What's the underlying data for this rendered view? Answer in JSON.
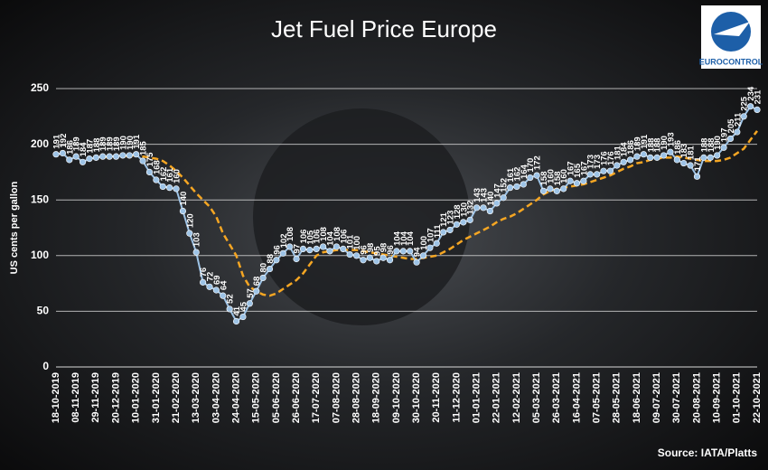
{
  "chart_data": {
    "type": "line",
    "title": "Jet Fuel Price Europe",
    "y_label": "US cents per gallon",
    "source": "Source: IATA/Platts",
    "logo": "EUROCONTROL",
    "categories": [
      "18-10-2019",
      null,
      null,
      "08-11-2019",
      null,
      null,
      "29-11-2019",
      null,
      null,
      "20-12-2019",
      null,
      null,
      "10-01-2020",
      null,
      null,
      "31-01-2020",
      null,
      null,
      "21-02-2020",
      null,
      null,
      "13-03-2020",
      null,
      null,
      "03-04-2020",
      null,
      null,
      "24-04-2020",
      null,
      null,
      "15-05-2020",
      null,
      null,
      "05-06-2020",
      null,
      null,
      "26-06-2020",
      null,
      null,
      "17-07-2020",
      null,
      null,
      "07-08-2020",
      null,
      null,
      "28-08-2020",
      null,
      null,
      "18-09-2020",
      null,
      null,
      "09-10-2020",
      null,
      null,
      "30-10-2020",
      null,
      null,
      "20-11-2020",
      null,
      null,
      "11-12-2020",
      null,
      null,
      "01-01-2021",
      null,
      null,
      "22-01-2021",
      null,
      null,
      "12-02-2021",
      null,
      null,
      "05-03-2021",
      null,
      null,
      "26-03-2021",
      null,
      null,
      "16-04-2021",
      null,
      null,
      "07-05-2021",
      null,
      null,
      "28-05-2021",
      null,
      null,
      "18-06-2021",
      null,
      null,
      "09-07-2021",
      null,
      null,
      "30-07-2021",
      null,
      null,
      "20-08-2021",
      null,
      null,
      "10-09-2021",
      null,
      null,
      "01-10-2021",
      null,
      null,
      "22-10-2021"
    ],
    "series": [
      {
        "color": "#9dc3e6",
        "markers": true,
        "data_labels": true,
        "dashed": false,
        "values": [
          191,
          192,
          186,
          189,
          184,
          187,
          188,
          189,
          189,
          189,
          190,
          190,
          191,
          185,
          175,
          168,
          162,
          161,
          160,
          140,
          120,
          103,
          76,
          72,
          69,
          64,
          52,
          41,
          45,
          57,
          68,
          80,
          88,
          96,
          102,
          108,
          97,
          106,
          105,
          106,
          108,
          104,
          108,
          106,
          101,
          100,
          96,
          98,
          95,
          98,
          96,
          104,
          104,
          104,
          94,
          100,
          107,
          111,
          121,
          123,
          128,
          130,
          132,
          143,
          143,
          140,
          147,
          152,
          161,
          162,
          164,
          170,
          172,
          158,
          160,
          158,
          160,
          167,
          165,
          167,
          173,
          173,
          176,
          176,
          181,
          184,
          186,
          189,
          191,
          188,
          188,
          190,
          193,
          186,
          183,
          181,
          171,
          188,
          188,
          190,
          197,
          205,
          211,
          225,
          234,
          231
        ]
      },
      {
        "color": "#f5a623",
        "markers": false,
        "data_labels": false,
        "dashed": true,
        "values": [
          null,
          null,
          null,
          null,
          null,
          null,
          null,
          188,
          189,
          189,
          189,
          190,
          190,
          189,
          188,
          187,
          185,
          181,
          176,
          170,
          163,
          156,
          150,
          144,
          135,
          120,
          110,
          100,
          82,
          72,
          68,
          65,
          64,
          66,
          70,
          74,
          78,
          84,
          92,
          100,
          103,
          104,
          105,
          105,
          105,
          105,
          104,
          103,
          102,
          101,
          100,
          99,
          98,
          97,
          97,
          98,
          99,
          100,
          103,
          106,
          110,
          114,
          117,
          120,
          123,
          126,
          130,
          133,
          135,
          138,
          142,
          146,
          150,
          155,
          158,
          160,
          161,
          162,
          163,
          164,
          166,
          168,
          170,
          172,
          175,
          178,
          180,
          183,
          184,
          186,
          187,
          188,
          188,
          189,
          188,
          187,
          186,
          185,
          185,
          185,
          186,
          188,
          192,
          196,
          204,
          212
        ]
      }
    ],
    "ylim": [
      0,
      250
    ],
    "yticks": [
      0,
      50,
      100,
      150,
      200,
      250
    ],
    "grid": true
  }
}
